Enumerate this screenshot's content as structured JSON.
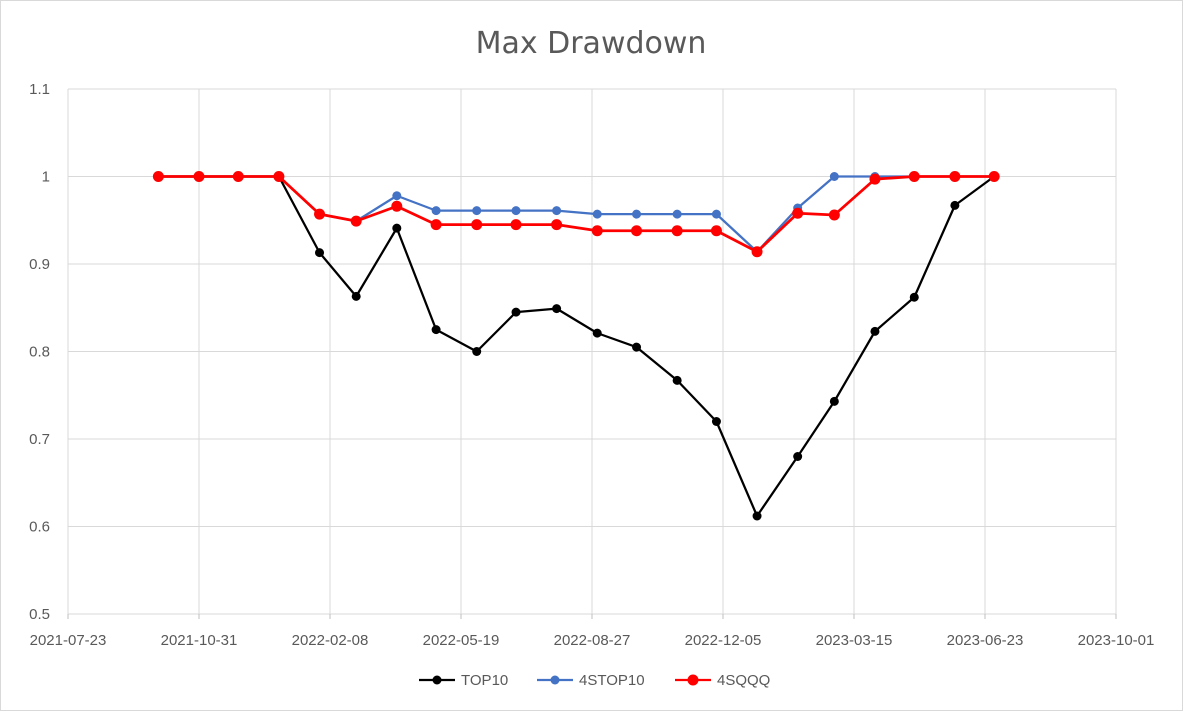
{
  "chart_data": {
    "type": "line",
    "title": "Max Drawdown",
    "xlabel": "",
    "ylabel": "",
    "x_axis_type": "date",
    "xlim": [
      "2021-07-23",
      "2023-10-01"
    ],
    "x_ticks": [
      "2021-07-23",
      "2021-10-31",
      "2022-02-08",
      "2022-05-19",
      "2022-08-27",
      "2022-12-05",
      "2023-03-15",
      "2023-06-23",
      "2023-10-01"
    ],
    "ylim": [
      0.5,
      1.1
    ],
    "y_ticks": [
      "0.5",
      "0.6",
      "0.7",
      "0.8",
      "0.9",
      "1",
      "1.1"
    ],
    "grid": true,
    "legend_position": "bottom",
    "x": [
      "2021-09-30",
      "2021-10-31",
      "2021-11-30",
      "2021-12-31",
      "2022-01-31",
      "2022-02-28",
      "2022-03-31",
      "2022-04-30",
      "2022-05-31",
      "2022-06-30",
      "2022-07-31",
      "2022-08-31",
      "2022-09-30",
      "2022-10-31",
      "2022-11-30",
      "2022-12-31",
      "2023-01-31",
      "2023-02-28",
      "2023-03-31",
      "2023-04-30",
      "2023-05-31",
      "2023-06-30"
    ],
    "series": [
      {
        "name": "TOP10",
        "color": "#000000",
        "values": [
          1.0,
          1.0,
          1.0,
          1.0,
          0.913,
          0.863,
          0.941,
          0.825,
          0.8,
          0.845,
          0.849,
          0.821,
          0.805,
          0.767,
          0.72,
          0.612,
          0.68,
          0.743,
          0.823,
          0.862,
          0.967,
          1.0
        ]
      },
      {
        "name": "4STOP10",
        "color": "#4472c4",
        "values": [
          1.0,
          1.0,
          1.0,
          1.0,
          0.957,
          0.949,
          0.978,
          0.961,
          0.961,
          0.961,
          0.961,
          0.957,
          0.957,
          0.957,
          0.957,
          0.914,
          0.964,
          1.0,
          1.0,
          1.0,
          1.0,
          1.0
        ]
      },
      {
        "name": "4SQQQ",
        "color": "#ff0000",
        "values": [
          1.0,
          1.0,
          1.0,
          1.0,
          0.957,
          0.949,
          0.966,
          0.945,
          0.945,
          0.945,
          0.945,
          0.938,
          0.938,
          0.938,
          0.938,
          0.914,
          0.958,
          0.956,
          0.997,
          1.0,
          1.0,
          1.0
        ]
      }
    ]
  }
}
